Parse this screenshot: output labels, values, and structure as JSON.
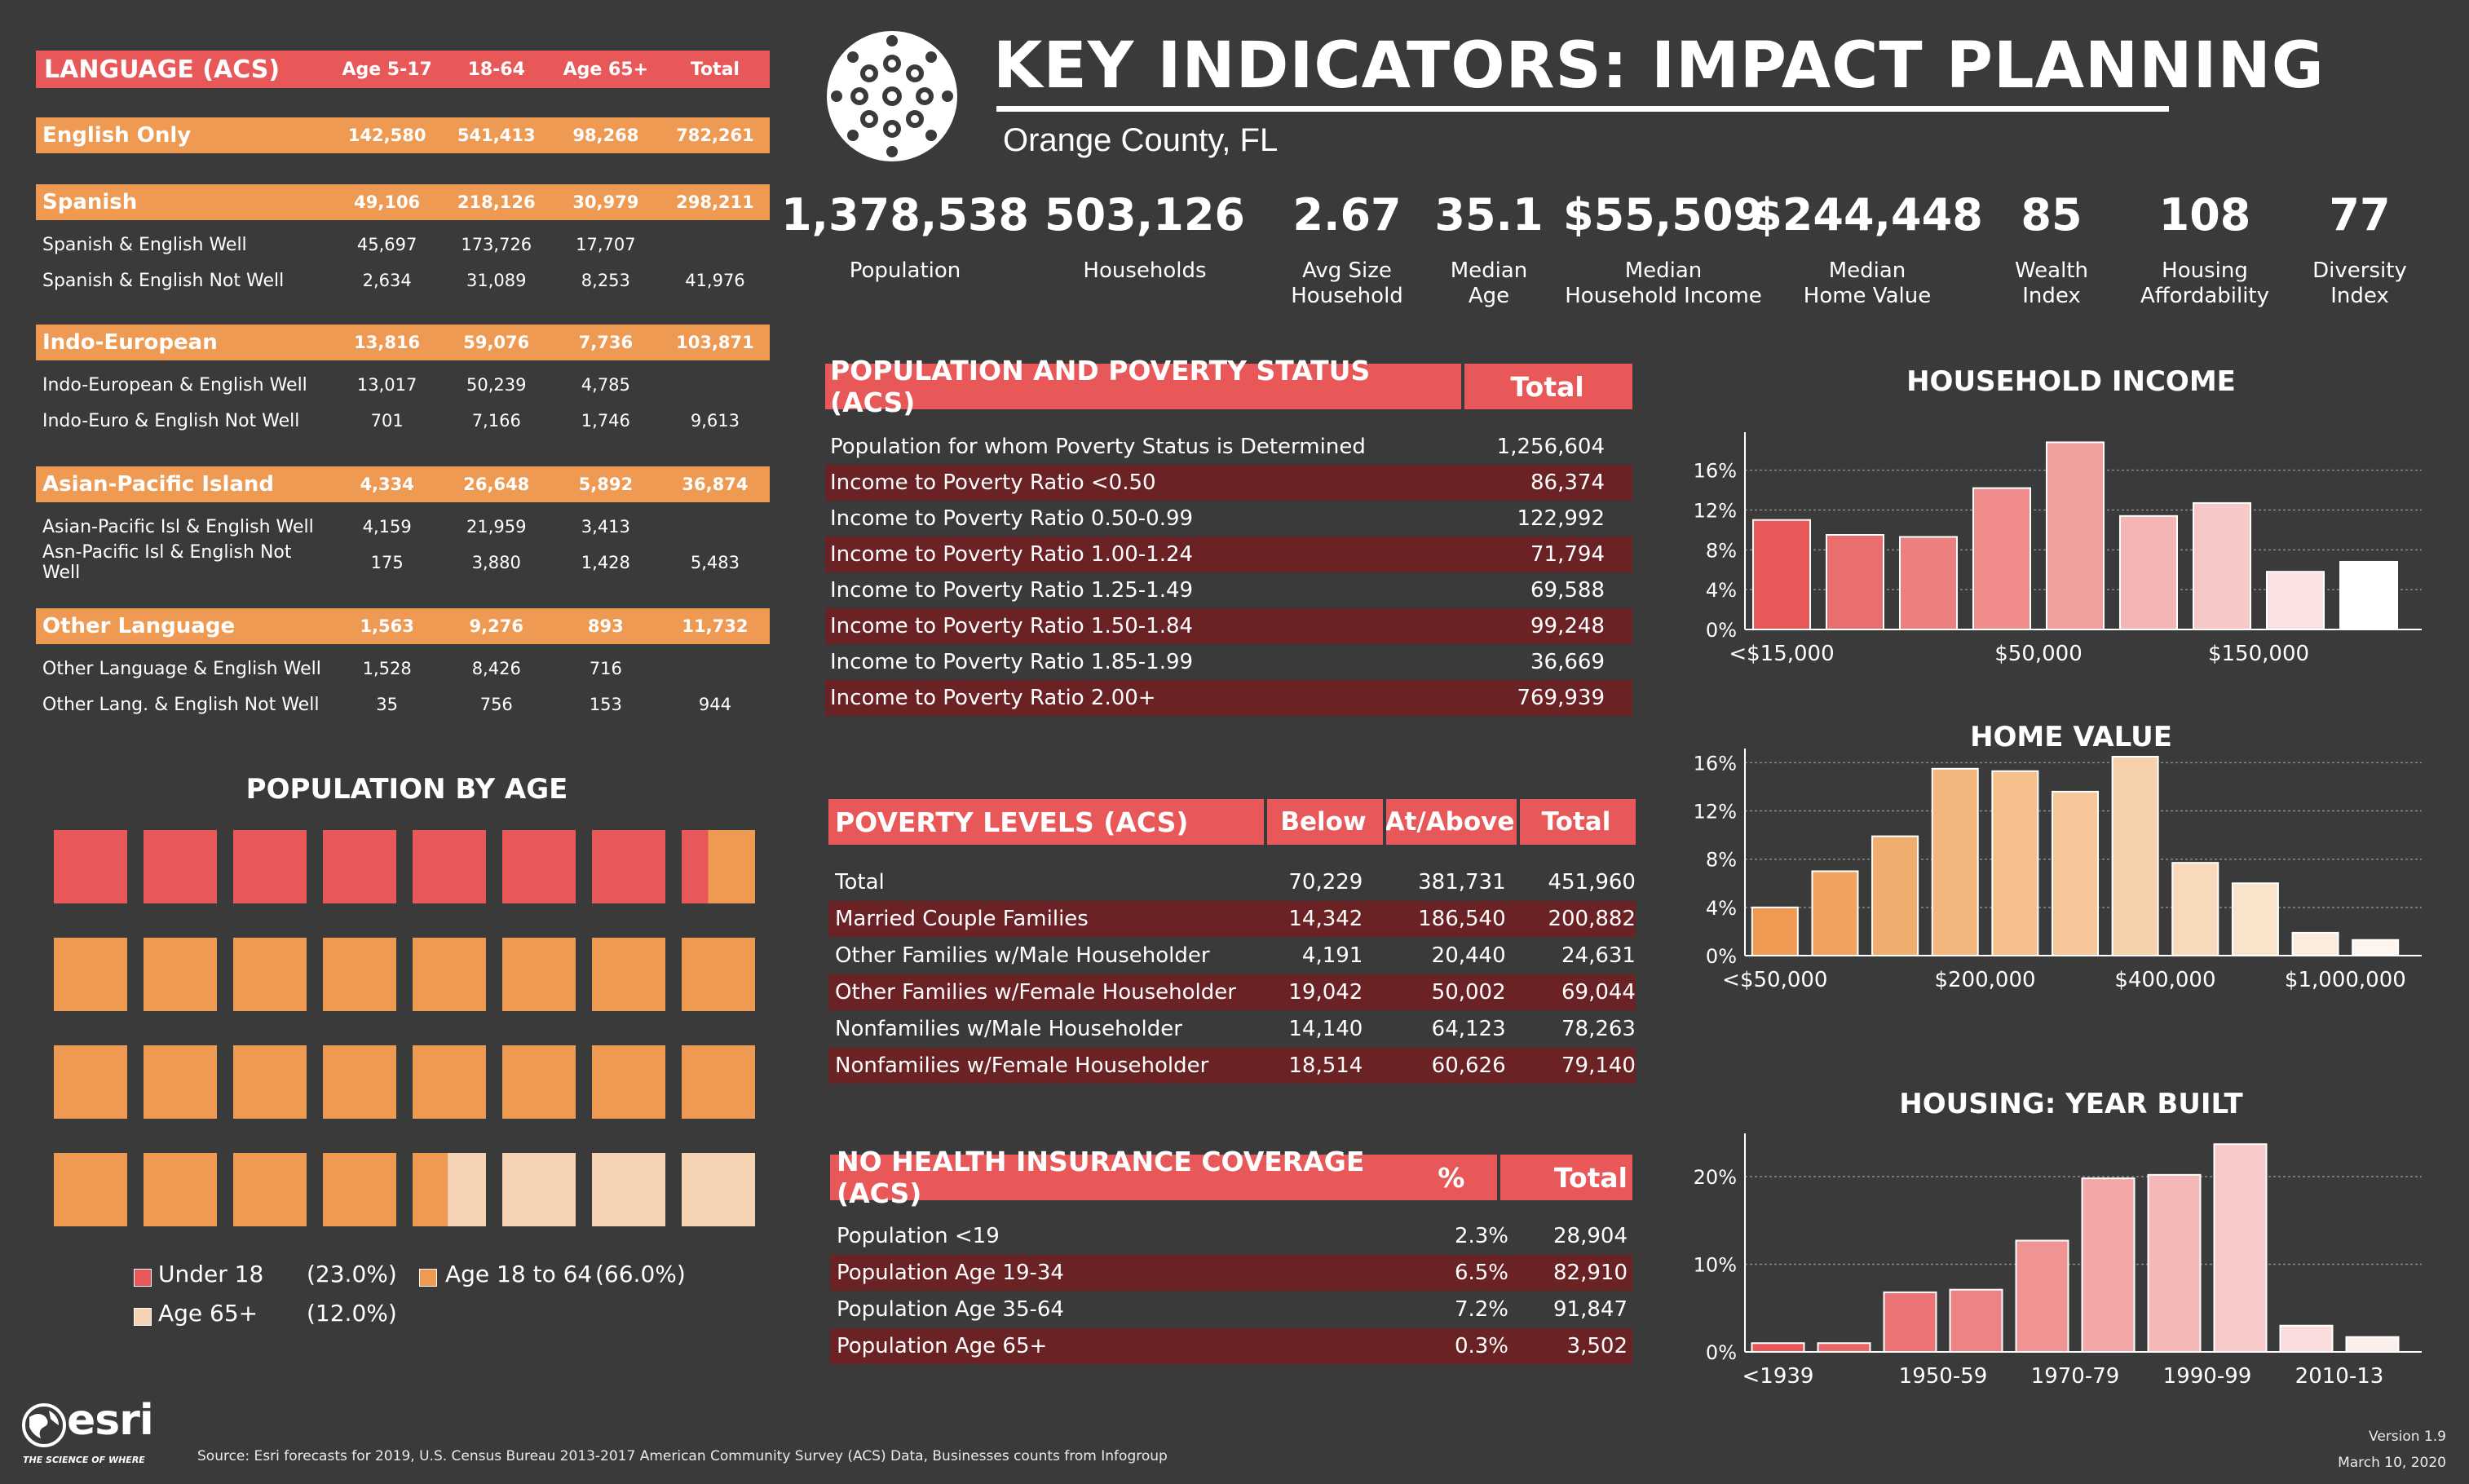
{
  "language": {
    "title": "LANGUAGE (ACS)",
    "columns": [
      "Age 5-17",
      "18-64",
      "Age 65+",
      "Total"
    ],
    "groups": [
      {
        "name": "English Only",
        "values": [
          "142,580",
          "541,413",
          "98,268",
          "782,261"
        ],
        "rows": []
      },
      {
        "name": "Spanish",
        "values": [
          "49,106",
          "218,126",
          "30,979",
          "298,211"
        ],
        "rows": [
          {
            "label": "Spanish & English Well",
            "values": [
              "45,697",
              "173,726",
              "17,707",
              ""
            ]
          },
          {
            "label": "Spanish & English Not Well",
            "values": [
              "2,634",
              "31,089",
              "8,253",
              "41,976"
            ]
          }
        ]
      },
      {
        "name": "Indo-European",
        "values": [
          "13,816",
          "59,076",
          "7,736",
          "103,871"
        ],
        "rows": [
          {
            "label": "Indo-European & English Well",
            "values": [
              "13,017",
              "50,239",
              "4,785",
              ""
            ]
          },
          {
            "label": "Indo-Euro & English Not Well",
            "values": [
              "701",
              "7,166",
              "1,746",
              "9,613"
            ]
          }
        ]
      },
      {
        "name": "Asian-Pacific Island",
        "values": [
          "4,334",
          "26,648",
          "5,892",
          "36,874"
        ],
        "rows": [
          {
            "label": "Asian-Pacific Isl & English Well",
            "values": [
              "4,159",
              "21,959",
              "3,413",
              ""
            ]
          },
          {
            "label": "Asn-Pacific Isl & English Not Well",
            "values": [
              "175",
              "3,880",
              "1,428",
              "5,483"
            ]
          }
        ]
      },
      {
        "name": "Other Language",
        "values": [
          "1,563",
          "9,276",
          "893",
          "11,732"
        ],
        "rows": [
          {
            "label": "Other Language & English Well",
            "values": [
              "1,528",
              "8,426",
              "716",
              ""
            ]
          },
          {
            "label": "Other Lang. & English Not Well",
            "values": [
              "35",
              "756",
              "153",
              "944"
            ]
          }
        ]
      }
    ]
  },
  "header": {
    "title": "KEY INDICATORS: IMPACT PLANNING",
    "subtitle": "Orange County, FL"
  },
  "kpis": [
    {
      "value": "1,378,538",
      "label": "Population"
    },
    {
      "value": "503,126",
      "label": "Households"
    },
    {
      "value": "2.67",
      "label": "Avg Size\nHousehold"
    },
    {
      "value": "35.1",
      "label": "Median\nAge"
    },
    {
      "value": "$55,509",
      "label": "Median\nHousehold Income"
    },
    {
      "value": "$244,448",
      "label": "Median\nHome Value"
    },
    {
      "value": "85",
      "label": "Wealth\nIndex"
    },
    {
      "value": "108",
      "label": "Housing\nAffordability"
    },
    {
      "value": "77",
      "label": "Diversity\nIndex"
    }
  ],
  "poverty_status": {
    "title": "POPULATION AND POVERTY STATUS (ACS)",
    "total_label": "Total",
    "rows": [
      {
        "label": "Population for whom Poverty Status is Determined",
        "total": "1,256,604"
      },
      {
        "label": "Income to Poverty Ratio <0.50",
        "total": "86,374"
      },
      {
        "label": "Income to Poverty Ratio 0.50-0.99",
        "total": "122,992"
      },
      {
        "label": "Income to Poverty Ratio 1.00-1.24",
        "total": "71,794"
      },
      {
        "label": "Income to Poverty Ratio 1.25-1.49",
        "total": "69,588"
      },
      {
        "label": "Income to Poverty Ratio 1.50-1.84",
        "total": "99,248"
      },
      {
        "label": "Income to Poverty Ratio 1.85-1.99",
        "total": "36,669"
      },
      {
        "label": "Income to Poverty Ratio 2.00+",
        "total": "769,939"
      }
    ]
  },
  "poverty_levels": {
    "title": "POVERTY LEVELS (ACS)",
    "columns": [
      "Below",
      "At/Above",
      "Total"
    ],
    "rows": [
      {
        "label": "Total",
        "values": [
          "70,229",
          "381,731",
          "451,960"
        ]
      },
      {
        "label": "Married Couple Families",
        "values": [
          "14,342",
          "186,540",
          "200,882"
        ]
      },
      {
        "label": "Other Families w/Male Householder",
        "values": [
          "4,191",
          "20,440",
          "24,631"
        ]
      },
      {
        "label": "Other Families w/Female Householder",
        "values": [
          "19,042",
          "50,002",
          "69,044"
        ]
      },
      {
        "label": "Nonfamilies w/Male Householder",
        "values": [
          "14,140",
          "64,123",
          "78,263"
        ]
      },
      {
        "label": "Nonfamilies w/Female Householder",
        "values": [
          "18,514",
          "60,626",
          "79,140"
        ]
      }
    ]
  },
  "insurance": {
    "title": "NO HEALTH INSURANCE COVERAGE  (ACS)",
    "pct_label": "%",
    "total_label": "Total",
    "rows": [
      {
        "label": "Population <19",
        "pct": "2.3%",
        "total": "28,904"
      },
      {
        "label": "Population Age 19-34",
        "pct": "6.5%",
        "total": "82,910"
      },
      {
        "label": "Population Age 35-64",
        "pct": "7.2%",
        "total": "91,847"
      },
      {
        "label": "Population Age 65+",
        "pct": "0.3%",
        "total": "3,502"
      }
    ]
  },
  "population_by_age": {
    "title": "POPULATION BY AGE",
    "legend": [
      {
        "label": "Under 18",
        "pct": "(23.0%)",
        "color": "#e85858"
      },
      {
        "label": "Age 18 to 64",
        "pct": "(66.0%)",
        "color": "#ef9a52"
      },
      {
        "label": "Age 65+",
        "pct": "(12.0%)",
        "color": "#f6d3b3"
      }
    ]
  },
  "chart_data": [
    {
      "type": "bar",
      "title": "HOUSEHOLD INCOME",
      "values": [
        11.0,
        9.5,
        9.3,
        14.2,
        18.8,
        11.4,
        12.7,
        5.8,
        6.8
      ],
      "tick_labels": [
        {
          "index": 0,
          "label": "<$15,000"
        },
        {
          "index": 3.5,
          "label": "$50,000"
        },
        {
          "index": 6.5,
          "label": "$150,000"
        }
      ],
      "yticks": [
        "0%",
        "4%",
        "8%",
        "12%",
        "16%"
      ],
      "ylim": [
        0,
        19
      ],
      "colors": [
        "#e85858",
        "#eb6e6e",
        "#ed7f7f",
        "#f08c8c",
        "#f19e9e",
        "#f4b5b5",
        "#f7c8c8",
        "#fae2e2",
        "#ffffff"
      ]
    },
    {
      "type": "bar",
      "title": "HOME VALUE",
      "values": [
        4.0,
        7.0,
        9.9,
        15.5,
        15.3,
        13.6,
        16.5,
        7.7,
        6.0,
        1.9,
        1.3
      ],
      "tick_labels": [
        {
          "index": 0,
          "label": "<$50,000"
        },
        {
          "index": 3.5,
          "label": "$200,000"
        },
        {
          "index": 6.5,
          "label": "$400,000"
        },
        {
          "index": 9.5,
          "label": "$1,000,000"
        }
      ],
      "yticks": [
        "0%",
        "4%",
        "8%",
        "12%",
        "16%"
      ],
      "ylim": [
        0,
        16.5
      ],
      "colors": [
        "#ef9a52",
        "#f0a35f",
        "#f1ad6d",
        "#f3b67c",
        "#f4bf8b",
        "#f5c79a",
        "#f6d0aa",
        "#f8dabb",
        "#fae3cb",
        "#fcecdc",
        "#fef6ee"
      ]
    },
    {
      "type": "bar",
      "title": "HOUSING: YEAR BUILT",
      "values": [
        1.0,
        1.0,
        6.8,
        7.1,
        12.7,
        19.8,
        20.2,
        23.7,
        3.0,
        1.7
      ],
      "tick_labels": [
        {
          "index": 0,
          "label": "<1939"
        },
        {
          "index": 2.5,
          "label": "1950-59"
        },
        {
          "index": 4.5,
          "label": "1970-79"
        },
        {
          "index": 6.5,
          "label": "1990-99"
        },
        {
          "index": 8.5,
          "label": "2010-13"
        }
      ],
      "yticks": [
        "0%",
        "10%",
        "20%"
      ],
      "ylim": [
        0,
        24
      ],
      "colors": [
        "#e85858",
        "#ea6565",
        "#ec7474",
        "#ee8383",
        "#f09393",
        "#f3a6a6",
        "#f5b8b8",
        "#f7c9c9",
        "#fadcdc",
        "#fdeeee"
      ]
    }
  ],
  "footer": {
    "brand": "esri",
    "tagline": "THE SCIENCE OF WHERE",
    "source": "Source: Esri forecasts for 2019, U.S. Census Bureau 2013-2017 American Community Survey (ACS) Data, Businesses counts from Infogroup",
    "version": "Version 1.9",
    "date": "March 10, 2020"
  }
}
